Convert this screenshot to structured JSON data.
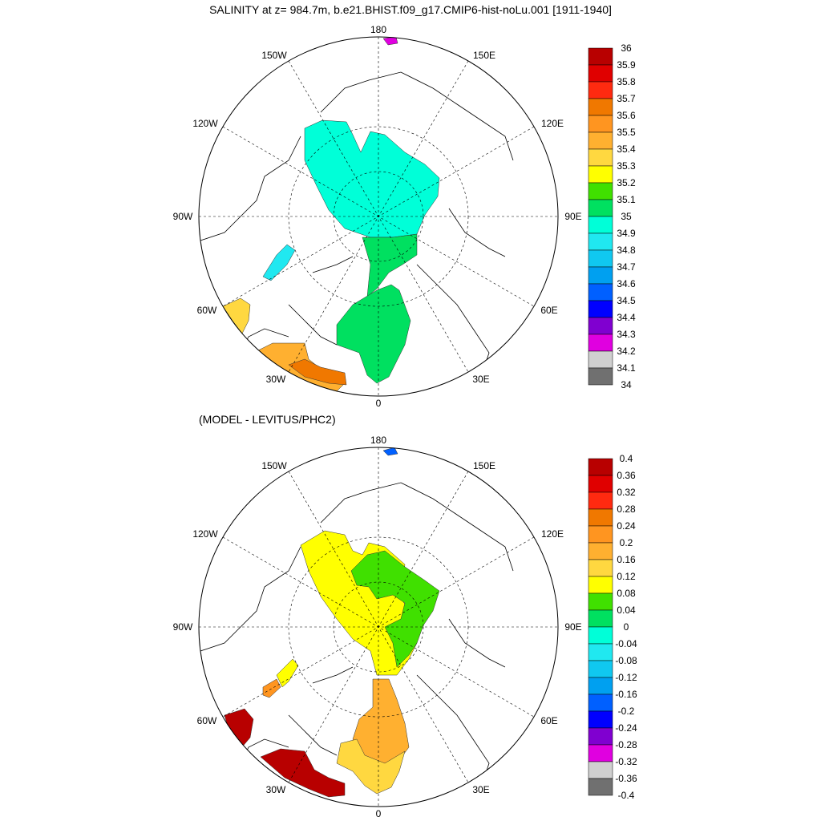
{
  "title": "SALINITY at z= 984.7m, b.e21.BHIST.f09_g17.CMIP6-hist-noLu.001 [1911-1940]",
  "subtitle": "(MODEL - LEVITUS/PHC2)",
  "maps": [
    {
      "id": "top",
      "lon_labels": {
        "180": "180",
        "150W": "150W",
        "150E": "150E",
        "120W": "120W",
        "120E": "120E",
        "90W": "90W",
        "90E": "90E",
        "60W": "60W",
        "60E": "60E",
        "30W": "30W",
        "30E": "30E",
        "0": "0"
      },
      "colorbar": {
        "labels": [
          "36",
          "35.9",
          "35.8",
          "35.7",
          "35.6",
          "35.5",
          "35.4",
          "35.3",
          "35.2",
          "35.1",
          "35",
          "34.9",
          "34.8",
          "34.7",
          "34.6",
          "34.5",
          "34.4",
          "34.3",
          "34.2",
          "34.1",
          "34"
        ],
        "colors": [
          "#b80000",
          "#e00000",
          "#ff2a10",
          "#f07800",
          "#ff9520",
          "#ffb030",
          "#ffd840",
          "#ffff00",
          "#40e000",
          "#00e060",
          "#00ffd8",
          "#20e8f0",
          "#10c8f0",
          "#00a0f0",
          "#0060ff",
          "#0000ff",
          "#8000d0",
          "#e000e0",
          "#d0d0d0",
          "#707070"
        ]
      },
      "regions": {
        "eurasian_basin": "#00ffd8",
        "nordic_seas": "#00e060",
        "fram_strait": "#00e060",
        "baffin_bay": "#20e8f0",
        "labrador_sea": "#ffd840",
        "north_atlantic_1": "#ffb030",
        "north_atlantic_2": "#f07800",
        "bering_strait": "#e000e0"
      }
    },
    {
      "id": "bottom",
      "lon_labels": {
        "180": "180",
        "150W": "150W",
        "150E": "150E",
        "120W": "120W",
        "120E": "120E",
        "90W": "90W",
        "90E": "90E",
        "60W": "60W",
        "60E": "60E",
        "30W": "30W",
        "30E": "30E",
        "0": "0"
      },
      "colorbar": {
        "labels": [
          "0.4",
          "0.36",
          "0.32",
          "0.28",
          "0.24",
          "0.2",
          "0.16",
          "0.12",
          "0.08",
          "0.04",
          "0",
          "-0.04",
          "-0.08",
          "-0.12",
          "-0.16",
          "-0.2",
          "-0.24",
          "-0.28",
          "-0.32",
          "-0.36",
          "-0.4"
        ],
        "colors": [
          "#b80000",
          "#e00000",
          "#ff2a10",
          "#f07800",
          "#ff9520",
          "#ffb030",
          "#ffd840",
          "#ffff00",
          "#40e000",
          "#00e060",
          "#00ffd8",
          "#20e8f0",
          "#10c8f0",
          "#00a0f0",
          "#0060ff",
          "#0000ff",
          "#8000d0",
          "#e000e0",
          "#d0d0d0",
          "#707070"
        ]
      },
      "regions": {
        "arctic_yellow": "#ffff00",
        "arctic_green": "#40e000",
        "nordic_seas": "#ffb030",
        "norwegian_sea": "#ffd840",
        "baffin_bay_1": "#ffff00",
        "baffin_bay_2": "#ff9520",
        "labrador_sea": "#b80000",
        "north_atlantic": "#b80000",
        "bering_strait": "#0060ff"
      }
    }
  ]
}
